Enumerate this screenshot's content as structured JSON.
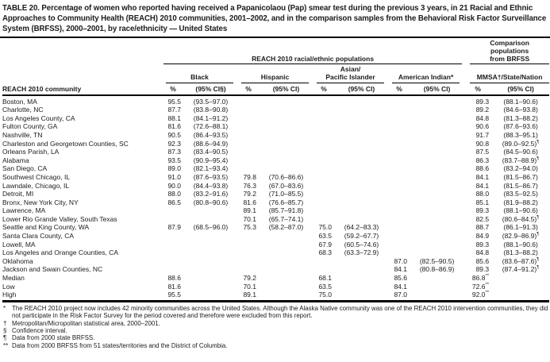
{
  "title": "TABLE 20. Percentage of women who reported having received a Papanicolaou (Pap) smear test during the previous 3 years, in 21 Racial and Ethnic Approaches to Community Health (REACH) 2010 communities, 2001–2002, and in the comparison samples from the Behavioral Risk Factor Surveillance System (BRFSS), 2000–2001, by race/ethnicity — United States",
  "header": {
    "community_label": "REACH 2010 community",
    "reach_span_label": "REACH 2010 racial/ethnic populations",
    "comparison_span_label": "Comparison\npopulations\nfrom BRFSS",
    "groups": [
      {
        "label": "Black",
        "pct": "%",
        "ci": "(95% CI§)"
      },
      {
        "label": "Hispanic",
        "pct": "%",
        "ci": "(95% CI)"
      },
      {
        "label": "Asian/\nPacific Islander",
        "pct": "%",
        "ci": "(95% CI)"
      },
      {
        "label": "American Indian*",
        "pct": "%",
        "ci": "(95% CI)"
      },
      {
        "label": "MMSA†/State/Nation",
        "pct": "%",
        "ci": "(95% CI)"
      }
    ]
  },
  "rows": [
    {
      "cells": [
        "Boston, MA",
        "95.5",
        "(93.5–97.0)",
        "",
        "",
        "",
        "",
        "",
        "",
        "89.3",
        "(88.1–90.6)"
      ]
    },
    {
      "cells": [
        "Charlotte, NC",
        "87.7",
        "(83.8–90.8)",
        "",
        "",
        "",
        "",
        "",
        "",
        "89.2",
        "(84.6–93.8)"
      ]
    },
    {
      "cells": [
        "Los Angeles County, CA",
        "88.1",
        "(84.1–91.2)",
        "",
        "",
        "",
        "",
        "",
        "",
        "84.8",
        "(81.3–88.2)"
      ]
    },
    {
      "cells": [
        "Fulton County, GA",
        "81.6",
        "(72.6–88.1)",
        "",
        "",
        "",
        "",
        "",
        "",
        "90.6",
        "(87.6–93.6)"
      ]
    },
    {
      "cells": [
        "Nashville, TN",
        "90.5",
        "(86.4–93.5)",
        "",
        "",
        "",
        "",
        "",
        "",
        "91.7",
        "(88.3–95.1)"
      ]
    },
    {
      "cells": [
        "Charleston and Georgetown Counties, SC",
        "92.3",
        "(88.6–94.9)",
        "",
        "",
        "",
        "",
        "",
        "",
        "90.8",
        "(89.0–92.5)¶"
      ]
    },
    {
      "cells": [
        "Orleans Parish, LA",
        "87.3",
        "(83.4–90.5)",
        "",
        "",
        "",
        "",
        "",
        "",
        "87.5",
        "(84.5–90.6)"
      ]
    },
    {
      "cells": [
        "Alabama",
        "93.5",
        "(90.9–95.4)",
        "",
        "",
        "",
        "",
        "",
        "",
        "86.3",
        "(83.7–88.9)¶"
      ]
    },
    {
      "cells": [
        "San Diego, CA",
        "89.0",
        "(82.1–93.4)",
        "",
        "",
        "",
        "",
        "",
        "",
        "88.6",
        "(83.2–94.0)"
      ]
    },
    {
      "cells": [
        "Southwest Chicago, IL",
        "91.0",
        "(87.6–93.5)",
        "79.8",
        "(70.6–86.6)",
        "",
        "",
        "",
        "",
        "84.1",
        "(81.5–86.7)"
      ]
    },
    {
      "cells": [
        "Lawndale, Chicago, IL",
        "90.0",
        "(84.4–93.8)",
        "76.3",
        "(67.0–83.6)",
        "",
        "",
        "",
        "",
        "84.1",
        "(81.5–86.7)"
      ]
    },
    {
      "cells": [
        "Detroit, MI",
        "88.0",
        "(83.2–91.6)",
        "79.2",
        "(71.0–85.5)",
        "",
        "",
        "",
        "",
        "88.0",
        "(83.5–92.5)"
      ]
    },
    {
      "cells": [
        "Bronx, New York City, NY",
        "86.5",
        "(80.8–90.6)",
        "81.6",
        "(76.6–85.7)",
        "",
        "",
        "",
        "",
        "85.1",
        "(81.9–88.2)"
      ]
    },
    {
      "cells": [
        "Lawrence, MA",
        "",
        "",
        "89.1",
        "(85.7–91.8)",
        "",
        "",
        "",
        "",
        "89.3",
        "(88.1–90.6)"
      ]
    },
    {
      "cells": [
        "Lower Rio Grande Valley, South Texas",
        "",
        "",
        "70.1",
        "(65.7–74.1)",
        "",
        "",
        "",
        "",
        "82.5",
        "(80.6–84.5)¶"
      ]
    },
    {
      "cells": [
        "Seattle and King County, WA",
        "87.9",
        "(68.5–96.0)",
        "75.3",
        "(58.2–87.0)",
        "75.0",
        "(64.2–83.3)",
        "",
        "",
        "88.7",
        "(86.1–91.3)"
      ]
    },
    {
      "cells": [
        "Santa Clara County, CA",
        "",
        "",
        "",
        "",
        "63.5",
        "(59.2–67.7)",
        "",
        "",
        "84.9",
        "(82.9–86.9)¶"
      ]
    },
    {
      "cells": [
        "Lowell, MA",
        "",
        "",
        "",
        "",
        "67.9",
        "(60.5–74.6)",
        "",
        "",
        "89.3",
        "(88.1–90.6)"
      ]
    },
    {
      "cells": [
        "Los Angeles and Orange Counties, CA",
        "",
        "",
        "",
        "",
        "68.3",
        "(63.3–72.9)",
        "",
        "",
        "84.8",
        "(81.3–88.2)"
      ]
    },
    {
      "cells": [
        "Oklahoma",
        "",
        "",
        "",
        "",
        "",
        "",
        "87.0",
        "(82.5–90.5)",
        "85.6",
        "(83.6–87.6)¶"
      ]
    },
    {
      "cells": [
        "Jackson and Swain Counties, NC",
        "",
        "",
        "",
        "",
        "",
        "",
        "84.1",
        "(80.8–86.9)",
        "89.3",
        "(87.4–91.2)¶"
      ]
    },
    {
      "cells": [
        "Median",
        "88.6",
        "",
        "79.2",
        "",
        "68.1",
        "",
        "85.6",
        "",
        "86.8**",
        ""
      ]
    },
    {
      "cells": [
        "Low",
        "81.6",
        "",
        "70.1",
        "",
        "63.5",
        "",
        "84.1",
        "",
        "72.6**",
        ""
      ]
    },
    {
      "cells": [
        "High",
        "95.5",
        "",
        "89.1",
        "",
        "75.0",
        "",
        "87.0",
        "",
        "92.0**",
        ""
      ]
    }
  ],
  "footnotes": [
    {
      "marker": "*",
      "text": "The REACH 2010 project now includes 42 minority communities across the United States. Although the Alaska Native community was one of the REACH 2010 intervention communities, they did not participate in the Risk Factor Survey for the period covered and therefore were excluded from this report."
    },
    {
      "marker": "†",
      "text": "Metropolitan/Micropolitan statistical area, 2000–2001."
    },
    {
      "marker": "§",
      "text": "Confidence interval."
    },
    {
      "marker": "¶",
      "text": "Data from 2000 state BRFSS."
    },
    {
      "marker": "**",
      "text": "Data from 2000 BRFSS from 51 states/territories and the District of Columbia."
    }
  ]
}
